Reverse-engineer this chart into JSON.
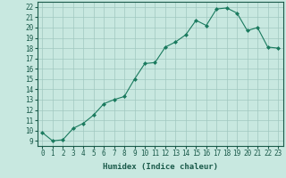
{
  "xlabel": "Humidex (Indice chaleur)",
  "x": [
    0,
    1,
    2,
    3,
    4,
    5,
    6,
    7,
    8,
    9,
    10,
    11,
    12,
    13,
    14,
    15,
    16,
    17,
    18,
    19,
    20,
    21,
    22,
    23
  ],
  "y": [
    9.8,
    9.0,
    9.1,
    10.2,
    10.7,
    11.5,
    12.6,
    13.0,
    13.3,
    15.0,
    16.5,
    16.6,
    18.1,
    18.6,
    19.3,
    20.7,
    20.2,
    21.8,
    21.9,
    21.4,
    19.7,
    20.0,
    18.1,
    18.0
  ],
  "line_color": "#1a7a5e",
  "marker": "D",
  "marker_size": 2,
  "bg_color": "#c8e8e0",
  "grid_color": "#a0c8c0",
  "tick_label_color": "#1a5a4a",
  "ylim": [
    8.5,
    22.5
  ],
  "yticks": [
    9,
    10,
    11,
    12,
    13,
    14,
    15,
    16,
    17,
    18,
    19,
    20,
    21,
    22
  ],
  "xlim": [
    -0.5,
    23.5
  ],
  "xticks": [
    0,
    1,
    2,
    3,
    4,
    5,
    6,
    7,
    8,
    9,
    10,
    11,
    12,
    13,
    14,
    15,
    16,
    17,
    18,
    19,
    20,
    21,
    22,
    23
  ],
  "xlabel_fontsize": 6.5,
  "tick_fontsize": 5.5
}
